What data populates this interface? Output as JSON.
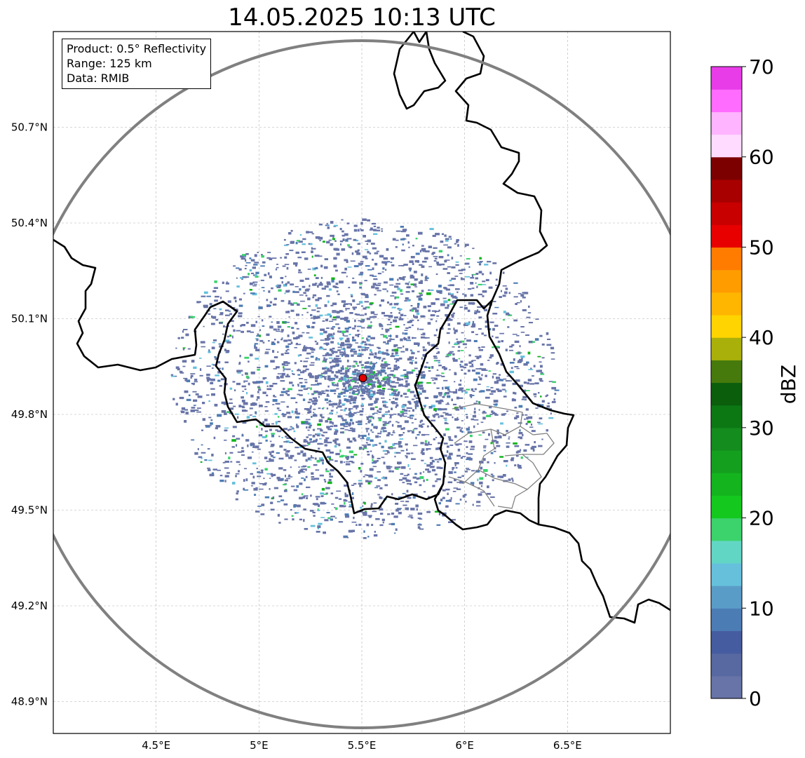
{
  "title": "14.05.2025 10:13 UTC",
  "info": {
    "product": "Product: 0.5° Reflectivity",
    "range": "Range: 125 km",
    "data": "Data: RMIB"
  },
  "map": {
    "lon_range": [
      4.0,
      7.0
    ],
    "lat_range": [
      48.8,
      51.0
    ],
    "lon_ticks": [
      {
        "value": 4.5,
        "label": "4.5°E"
      },
      {
        "value": 5.0,
        "label": "5°E"
      },
      {
        "value": 5.5,
        "label": "5.5°E"
      },
      {
        "value": 6.0,
        "label": "6°E"
      },
      {
        "value": 6.5,
        "label": "6.5°E"
      }
    ],
    "lat_ticks": [
      {
        "value": 50.7,
        "label": "50.7°N"
      },
      {
        "value": 50.4,
        "label": "50.4°N"
      },
      {
        "value": 50.1,
        "label": "50.1°N"
      },
      {
        "value": 49.8,
        "label": "49.8°N"
      },
      {
        "value": 49.5,
        "label": "49.5°N"
      },
      {
        "value": 49.2,
        "label": "49.2°N"
      },
      {
        "value": 48.9,
        "label": "48.9°N"
      }
    ],
    "grid": true,
    "radar_site": {
      "lon": 5.505,
      "lat": 49.914,
      "color": "#e00000"
    },
    "range_ring_color": "#808080"
  },
  "colorbar": {
    "label": "dBZ",
    "min": 0,
    "max": 70,
    "ticks": [
      {
        "value": 0,
        "label": "0"
      },
      {
        "value": 10,
        "label": "10"
      },
      {
        "value": 20,
        "label": "20"
      },
      {
        "value": 30,
        "label": "30"
      },
      {
        "value": 40,
        "label": "40"
      },
      {
        "value": 50,
        "label": "50"
      },
      {
        "value": 60,
        "label": "60"
      },
      {
        "value": 70,
        "label": "70"
      }
    ],
    "colors": [
      "#6874a8",
      "#5868a0",
      "#465ca0",
      "#4c7cb4",
      "#5a9cc8",
      "#66c0dc",
      "#62d6c4",
      "#3cd26c",
      "#14c81e",
      "#14b41e",
      "#14a01e",
      "#148c1e",
      "#0c7814",
      "#0a5e0c",
      "#467a0c",
      "#aab00a",
      "#ffd400",
      "#ffb600",
      "#ff9c00",
      "#ff7c00",
      "#e80000",
      "#c80000",
      "#a80000",
      "#7c0000",
      "#ffdcff",
      "#ffb4ff",
      "#ff6cff",
      "#e83ce8"
    ]
  }
}
